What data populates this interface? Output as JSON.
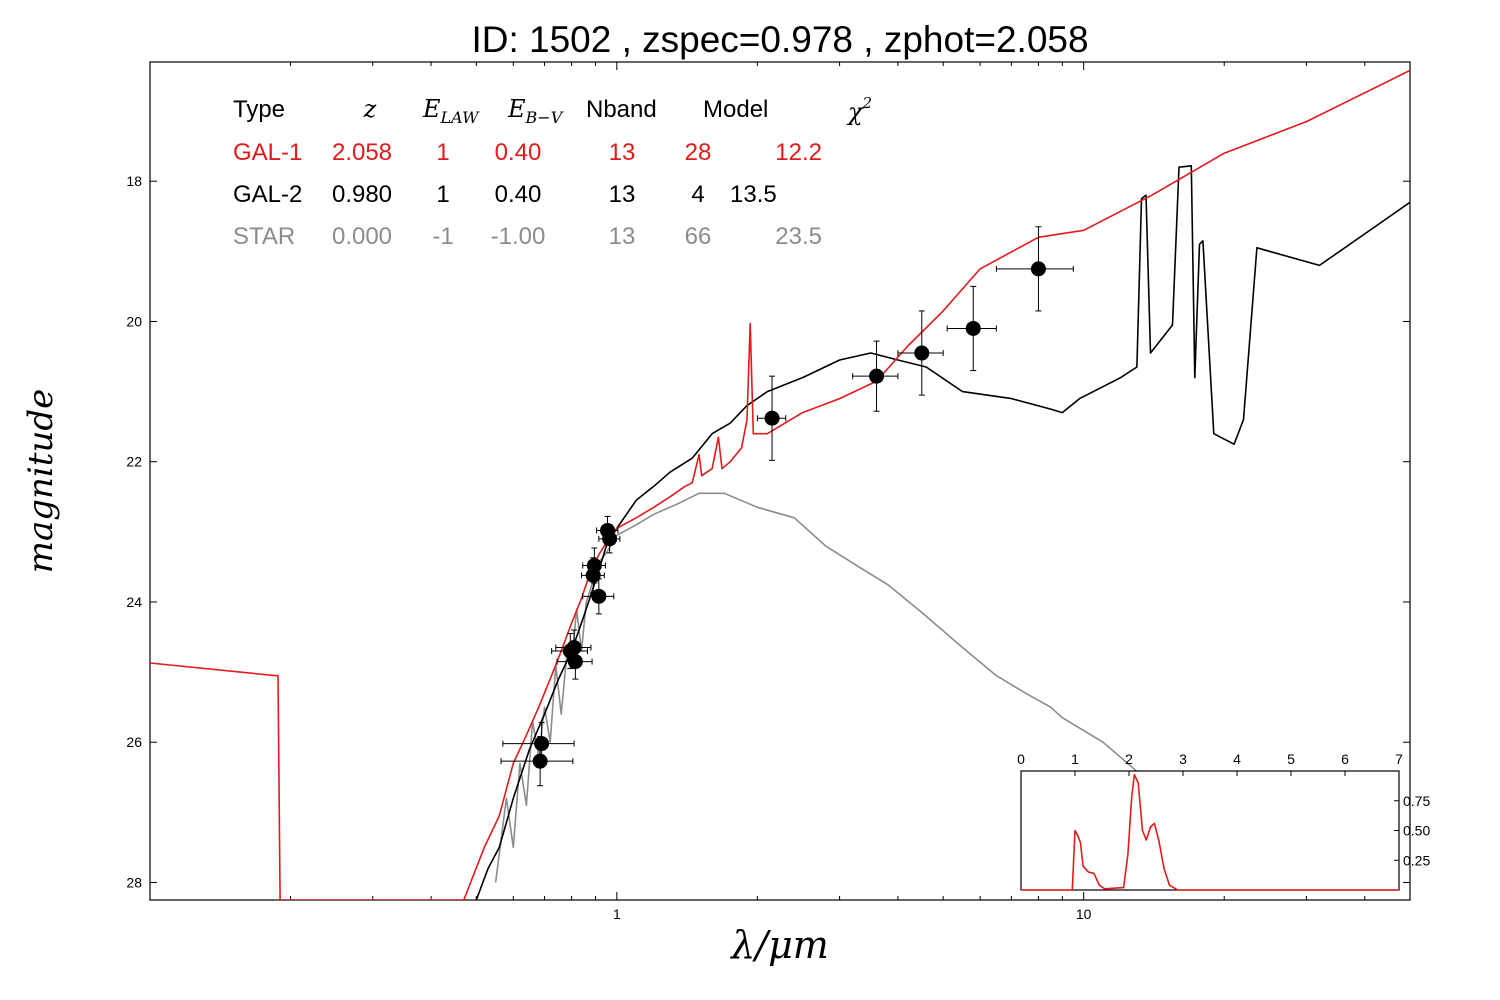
{
  "title": "ID:  1502  , zspec=0.978 , zphot=2.058",
  "colors": {
    "gal1": "#e31a1c",
    "gal2": "#000000",
    "star": "#8c8c8c"
  },
  "chart_data": {
    "type": "line",
    "xlabel": "λ/μm",
    "ylabel": "magnitude",
    "xscale": "log",
    "xlim": [
      0.1,
      50
    ],
    "ylim": [
      28.25,
      16.3
    ],
    "yticks": [
      18,
      20,
      22,
      24,
      26,
      28
    ],
    "yticklabels": [
      "18",
      "20",
      "22",
      "24",
      "26",
      "28"
    ],
    "xticks": [
      1,
      10
    ],
    "xticklabels": [
      "1",
      "10"
    ],
    "grid": false,
    "legend_table": {
      "headers": [
        "Type",
        "z",
        "E_LAW",
        "E_B-V",
        "Nband",
        "Model",
        "χ²"
      ],
      "rows": [
        {
          "cells": [
            "GAL-1",
            "2.058",
            "1",
            "0.40",
            "13",
            "28",
            "12.2"
          ],
          "color": "#e31a1c"
        },
        {
          "cells": [
            "GAL-2",
            "0.980",
            "1",
            "0.40",
            "13",
            "4",
            "13.5"
          ],
          "color": "#000000"
        },
        {
          "cells": [
            "STAR",
            "0.000",
            "-1",
            "-1.00",
            "13",
            "66",
            "23.5"
          ],
          "color": "#8c8c8c"
        }
      ]
    },
    "series": [
      {
        "key": "gal1",
        "color": "#e31a1c",
        "points": [
          [
            0.1,
            24.87
          ],
          [
            0.185,
            25.05
          ],
          [
            0.188,
            25.05
          ],
          [
            0.19,
            28.25
          ],
          [
            0.47,
            28.25
          ],
          [
            0.52,
            27.5
          ],
          [
            0.56,
            27.05
          ],
          [
            0.6,
            26.3
          ],
          [
            0.64,
            25.9
          ],
          [
            0.68,
            25.5
          ],
          [
            0.72,
            25.1
          ],
          [
            0.76,
            24.7
          ],
          [
            0.8,
            24.3
          ],
          [
            0.84,
            23.95
          ],
          [
            0.88,
            23.55
          ],
          [
            0.92,
            23.3
          ],
          [
            0.96,
            23.1
          ],
          [
            1.0,
            22.95
          ],
          [
            1.1,
            22.8
          ],
          [
            1.2,
            22.65
          ],
          [
            1.3,
            22.5
          ],
          [
            1.4,
            22.35
          ],
          [
            1.45,
            22.3
          ],
          [
            1.5,
            21.9
          ],
          [
            1.52,
            22.2
          ],
          [
            1.6,
            22.1
          ],
          [
            1.65,
            21.65
          ],
          [
            1.68,
            22.1
          ],
          [
            1.75,
            22.0
          ],
          [
            1.85,
            21.8
          ],
          [
            1.9,
            21.4
          ],
          [
            1.93,
            20.03
          ],
          [
            1.96,
            21.6
          ],
          [
            2.1,
            21.6
          ],
          [
            2.5,
            21.3
          ],
          [
            3.0,
            21.1
          ],
          [
            3.6,
            20.85
          ],
          [
            4.2,
            20.35
          ],
          [
            5.0,
            19.85
          ],
          [
            6.0,
            19.25
          ],
          [
            8.0,
            18.8
          ],
          [
            10.0,
            18.7
          ],
          [
            14.0,
            18.2
          ],
          [
            20.0,
            17.6
          ],
          [
            30.0,
            17.15
          ],
          [
            50.0,
            16.42
          ]
        ]
      },
      {
        "key": "gal2",
        "color": "#000000",
        "points": [
          [
            0.5,
            28.25
          ],
          [
            0.53,
            27.8
          ],
          [
            0.56,
            27.5
          ],
          [
            0.6,
            26.8
          ],
          [
            0.65,
            26.1
          ],
          [
            0.7,
            25.6
          ],
          [
            0.75,
            25.1
          ],
          [
            0.8,
            24.7
          ],
          [
            0.85,
            24.2
          ],
          [
            0.9,
            23.7
          ],
          [
            0.95,
            23.2
          ],
          [
            1.0,
            22.95
          ],
          [
            1.1,
            22.55
          ],
          [
            1.2,
            22.35
          ],
          [
            1.3,
            22.15
          ],
          [
            1.45,
            21.95
          ],
          [
            1.6,
            21.6
          ],
          [
            1.75,
            21.45
          ],
          [
            1.9,
            21.2
          ],
          [
            2.1,
            21.0
          ],
          [
            2.5,
            20.8
          ],
          [
            3.0,
            20.55
          ],
          [
            3.5,
            20.45
          ],
          [
            4.0,
            20.55
          ],
          [
            4.6,
            20.65
          ],
          [
            5.5,
            21.0
          ],
          [
            7.0,
            21.1
          ],
          [
            8.5,
            21.25
          ],
          [
            9.0,
            21.3
          ],
          [
            9.8,
            21.1
          ],
          [
            12.0,
            20.8
          ],
          [
            13.0,
            20.65
          ],
          [
            13.3,
            18.25
          ],
          [
            13.6,
            18.2
          ],
          [
            13.9,
            20.45
          ],
          [
            15.5,
            20.05
          ],
          [
            16.0,
            17.8
          ],
          [
            17.0,
            17.78
          ],
          [
            17.3,
            20.8
          ],
          [
            17.7,
            18.9
          ],
          [
            18.0,
            18.85
          ],
          [
            19.0,
            21.6
          ],
          [
            21.0,
            21.75
          ],
          [
            22.0,
            21.4
          ],
          [
            23.5,
            18.95
          ],
          [
            32.0,
            19.2
          ],
          [
            50.0,
            18.3
          ]
        ]
      },
      {
        "key": "star",
        "color": "#8c8c8c",
        "points": [
          [
            0.55,
            28.0
          ],
          [
            0.58,
            26.8
          ],
          [
            0.6,
            27.5
          ],
          [
            0.62,
            26.3
          ],
          [
            0.64,
            26.9
          ],
          [
            0.66,
            25.7
          ],
          [
            0.68,
            26.2
          ],
          [
            0.7,
            25.5
          ],
          [
            0.72,
            26.0
          ],
          [
            0.74,
            24.9
          ],
          [
            0.76,
            25.6
          ],
          [
            0.78,
            24.8
          ],
          [
            0.8,
            24.9
          ],
          [
            0.82,
            24.1
          ],
          [
            0.84,
            24.7
          ],
          [
            0.86,
            24.0
          ],
          [
            0.88,
            23.8
          ],
          [
            0.9,
            23.5
          ],
          [
            0.95,
            23.3
          ],
          [
            1.0,
            23.05
          ],
          [
            1.1,
            22.9
          ],
          [
            1.2,
            22.75
          ],
          [
            1.35,
            22.6
          ],
          [
            1.5,
            22.45
          ],
          [
            1.7,
            22.45
          ],
          [
            2.0,
            22.65
          ],
          [
            2.4,
            22.8
          ],
          [
            2.8,
            23.2
          ],
          [
            3.3,
            23.5
          ],
          [
            3.8,
            23.75
          ],
          [
            4.5,
            24.15
          ],
          [
            5.5,
            24.65
          ],
          [
            6.5,
            25.05
          ],
          [
            7.5,
            25.3
          ],
          [
            8.5,
            25.5
          ],
          [
            9.0,
            25.65
          ],
          [
            11.0,
            26.0
          ],
          [
            14.0,
            26.6
          ],
          [
            17.5,
            27.0
          ]
        ]
      }
    ],
    "photometry": [
      {
        "x": 0.69,
        "y": 26.02,
        "xerr": 0.12,
        "yerr": 0.3
      },
      {
        "x": 0.685,
        "y": 26.27,
        "xerr": 0.12,
        "yerr": 0.35
      },
      {
        "x": 0.795,
        "y": 24.7,
        "xerr": 0.07,
        "yerr": 0.25
      },
      {
        "x": 0.81,
        "y": 24.65,
        "xerr": 0.07,
        "yerr": 0.25
      },
      {
        "x": 0.815,
        "y": 24.85,
        "xerr": 0.07,
        "yerr": 0.25
      },
      {
        "x": 0.89,
        "y": 23.62,
        "xerr": 0.05,
        "yerr": 0.25
      },
      {
        "x": 0.895,
        "y": 23.48,
        "xerr": 0.05,
        "yerr": 0.25
      },
      {
        "x": 0.915,
        "y": 23.92,
        "xerr": 0.07,
        "yerr": 0.25
      },
      {
        "x": 0.955,
        "y": 22.98,
        "xerr": 0.05,
        "yerr": 0.2
      },
      {
        "x": 0.965,
        "y": 23.1,
        "xerr": 0.05,
        "yerr": 0.2
      },
      {
        "x": 2.15,
        "y": 21.38,
        "xerr": 0.15,
        "yerr": 0.6
      },
      {
        "x": 3.6,
        "y": 20.78,
        "xerr": 0.4,
        "yerr": 0.5
      },
      {
        "x": 4.5,
        "y": 20.45,
        "xerr": 0.5,
        "yerr": 0.6
      },
      {
        "x": 5.8,
        "y": 20.1,
        "xerr": 0.7,
        "yerr": 0.6
      },
      {
        "x": 8.0,
        "y": 19.25,
        "xerr": 1.5,
        "yerr": 0.6
      }
    ],
    "inset": {
      "type": "line",
      "xlim": [
        0,
        7
      ],
      "ylim": [
        0,
        1.0
      ],
      "xticks": [
        0,
        1,
        2,
        3,
        4,
        5,
        6,
        7
      ],
      "xticklabels": [
        "0",
        "1",
        "2",
        "3",
        "4",
        "5",
        "6",
        "7"
      ],
      "yticks": [
        0.25,
        0.5,
        0.75
      ],
      "yticklabels": [
        "0.25",
        "0.50",
        "0.75"
      ],
      "color": "#e31a1c",
      "points": [
        [
          0,
          0
        ],
        [
          0.95,
          0
        ],
        [
          0.98,
          0.3
        ],
        [
          1.0,
          0.5
        ],
        [
          1.05,
          0.46
        ],
        [
          1.1,
          0.4
        ],
        [
          1.15,
          0.2
        ],
        [
          1.25,
          0.15
        ],
        [
          1.35,
          0.14
        ],
        [
          1.45,
          0.04
        ],
        [
          1.55,
          0.01
        ],
        [
          1.9,
          0.02
        ],
        [
          1.98,
          0.3
        ],
        [
          2.05,
          0.78
        ],
        [
          2.1,
          0.97
        ],
        [
          2.17,
          0.9
        ],
        [
          2.25,
          0.5
        ],
        [
          2.32,
          0.42
        ],
        [
          2.4,
          0.53
        ],
        [
          2.47,
          0.56
        ],
        [
          2.55,
          0.42
        ],
        [
          2.65,
          0.18
        ],
        [
          2.75,
          0.04
        ],
        [
          2.9,
          0
        ],
        [
          7,
          0
        ]
      ]
    }
  }
}
